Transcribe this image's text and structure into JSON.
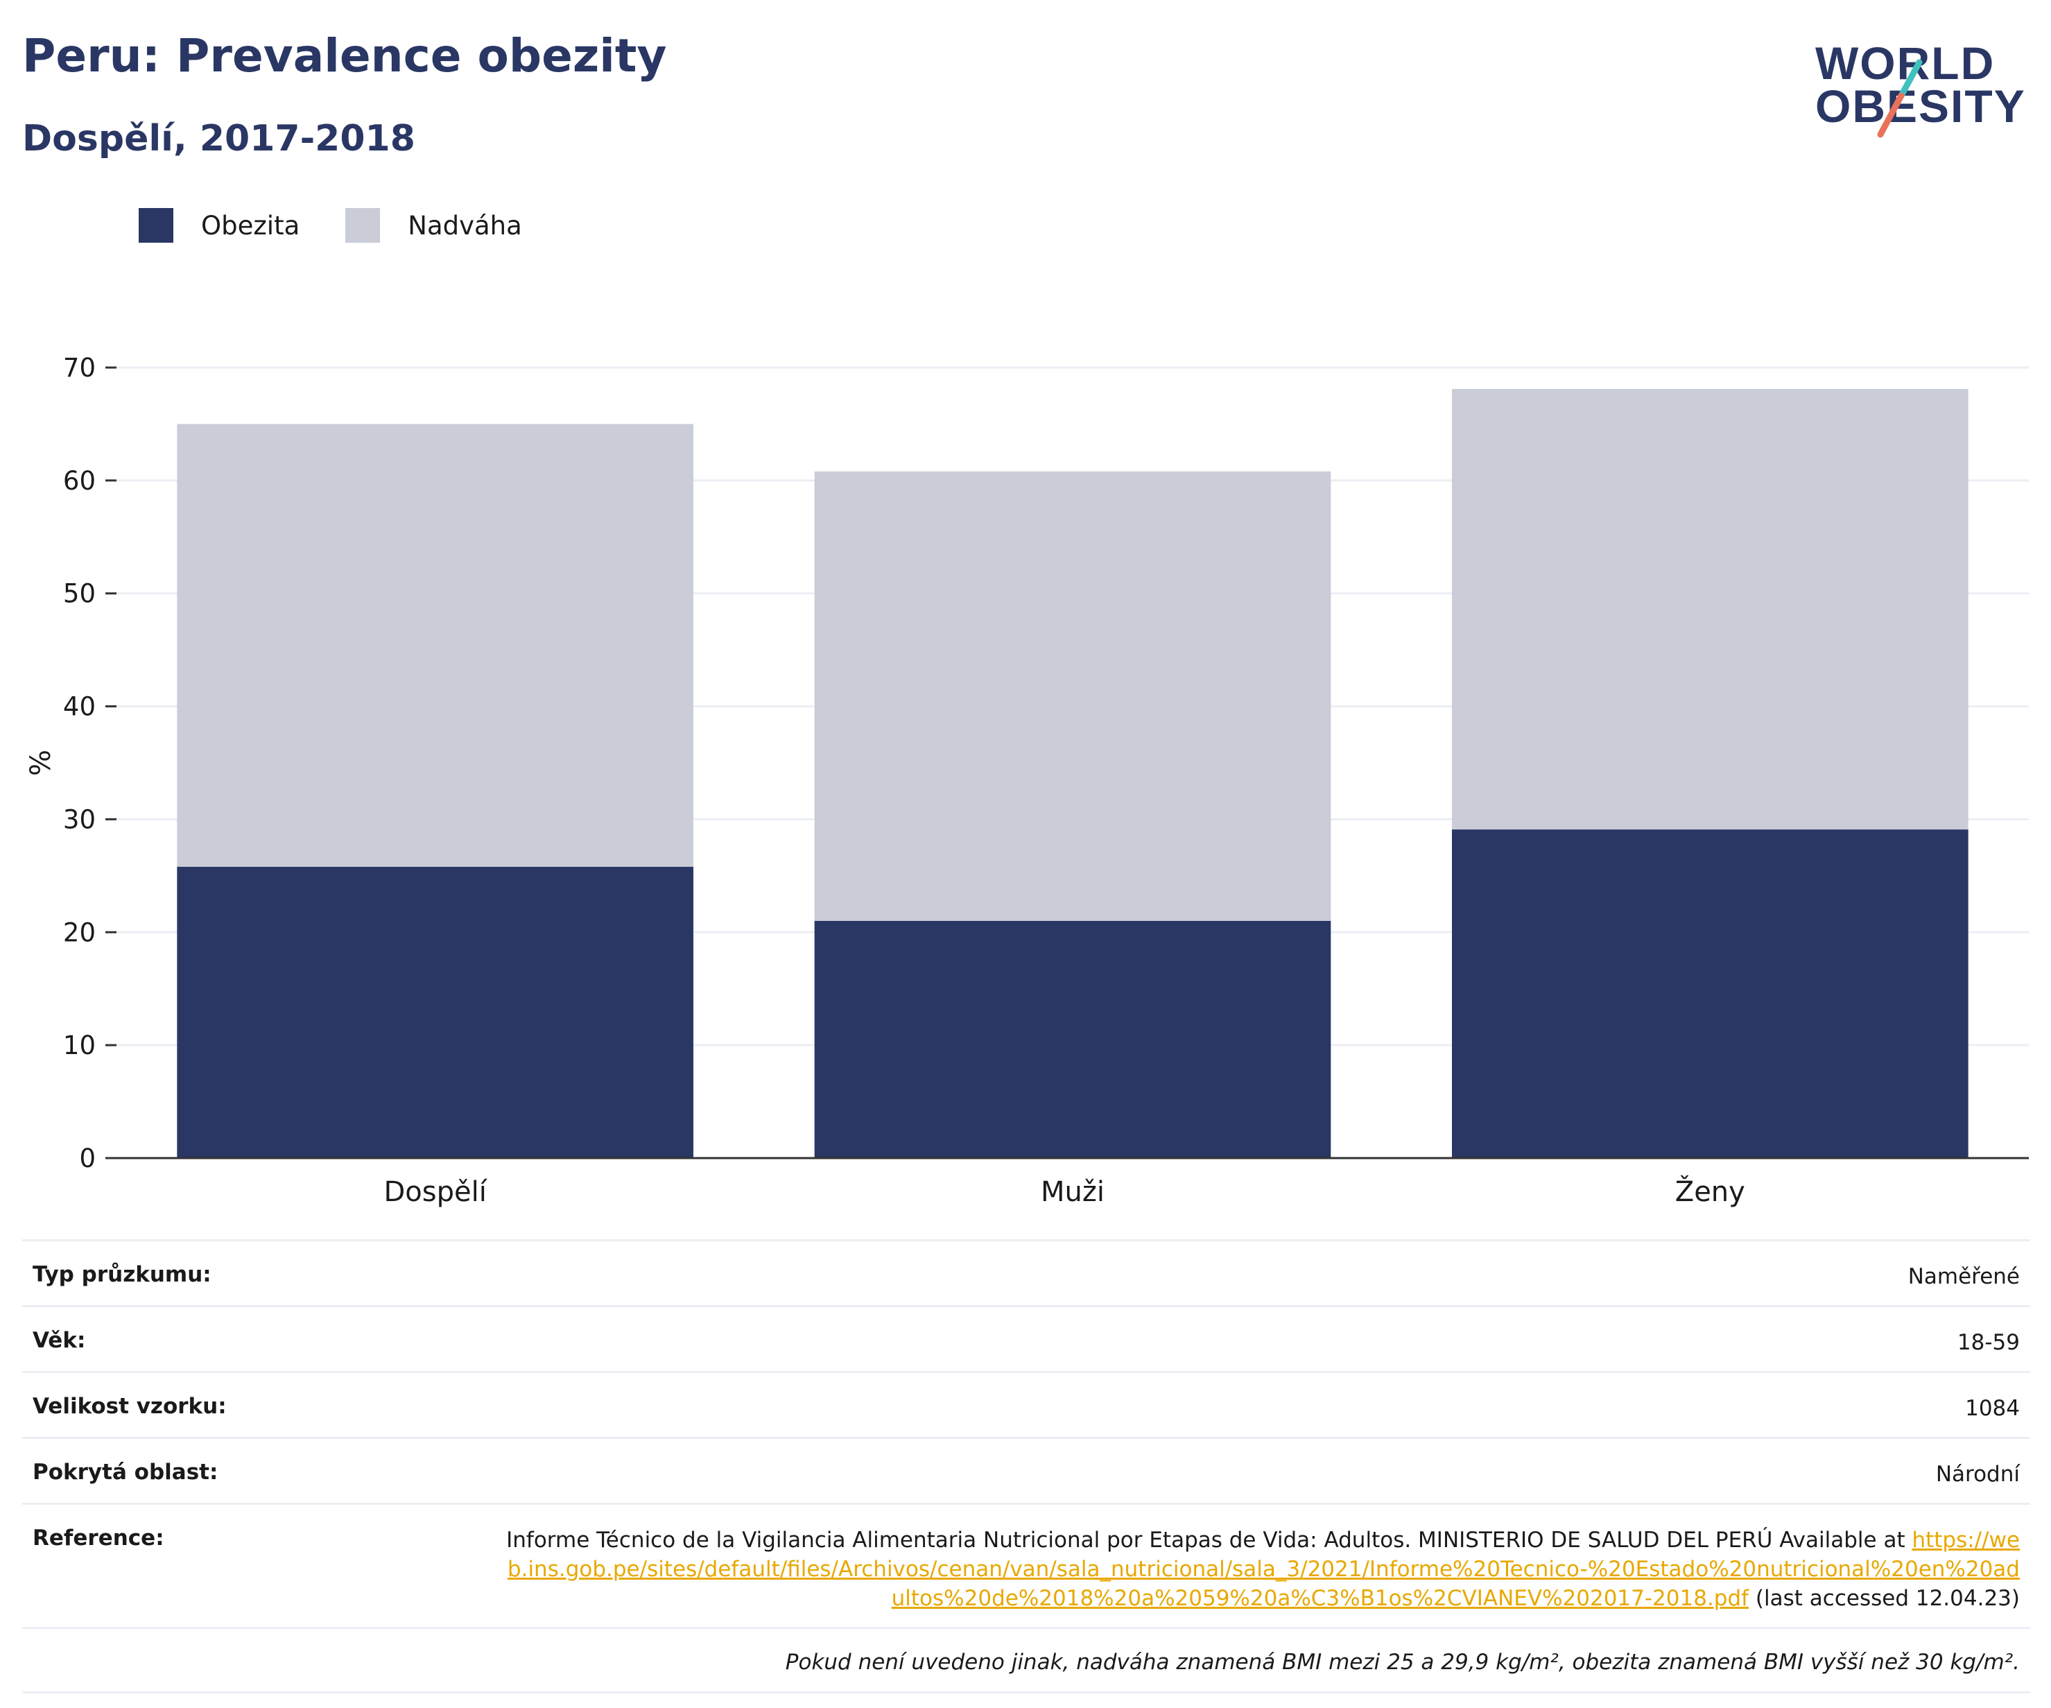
{
  "header": {
    "title": "Peru: Prevalence obezity",
    "subtitle": "Dospělí, 2017-2018"
  },
  "logo": {
    "line1": "WORLD",
    "line2": "OBESITY",
    "slash_colors": [
      "#3fc1c0",
      "#e8735a"
    ]
  },
  "chart_data": {
    "type": "bar",
    "stacked": true,
    "categories": [
      "Dospělí",
      "Muži",
      "Ženy"
    ],
    "series": [
      {
        "name": "Obezita",
        "color": "#2a3764",
        "values": [
          25.8,
          21.0,
          29.1
        ]
      },
      {
        "name": "Nadváha",
        "color": "#cacdd8",
        "values": [
          39.2,
          39.8,
          39.0
        ]
      }
    ],
    "ylabel": "%",
    "xlabel": "",
    "ylim": [
      0,
      70
    ],
    "yticks": [
      0,
      10,
      20,
      30,
      40,
      50,
      60,
      70
    ],
    "grid": true,
    "legend_position": "top-left"
  },
  "info": {
    "rows": [
      {
        "label": "Typ průzkumu:",
        "value": "Naměřené"
      },
      {
        "label": "Věk:",
        "value": "18-59"
      },
      {
        "label": "Velikost vzorku:",
        "value": "1084"
      },
      {
        "label": "Pokrytá oblast:",
        "value": "Národní"
      }
    ],
    "reference": {
      "label": "Reference:",
      "text_before": "Informe Técnico de la Vigilancia Alimentaria Nutricional por Etapas de Vida: Adultos. MINISTERIO DE SALUD DEL PERÚ Available at ",
      "link": "https://web.ins.gob.pe/sites/default/files/Archivos/cenan/van/sala_nutricional/sala_3/2021/Informe%20Tecnico-%20Estado%20nutricional%20en%20adultos%20de%2018%20a%2059%20a%C3%B1os%2CVIANEV%202017-2018.pdf",
      "text_after": " (last accessed 12.04.23)"
    },
    "note": "Pokud není uvedeno jinak, nadváha znamená BMI mezi 25 a 29,9 kg/m², obezita znamená BMI vyšší než 30 kg/m²."
  }
}
